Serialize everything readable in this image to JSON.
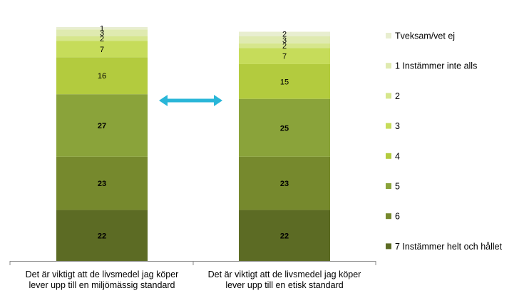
{
  "chart_data": {
    "type": "bar",
    "stacked": true,
    "categories": [
      "Det är viktigt att de livsmedel jag köper lever upp till en miljömässig standard",
      "Det är viktigt att de livsmedel jag köper lever upp till en etisk standard"
    ],
    "category_label_lines": [
      [
        "Det är viktigt att de livsmedel jag köper",
        "lever upp till en miljömässig standard"
      ],
      [
        "Det är viktigt att de livsmedel jag köper",
        "lever upp till en etisk standard"
      ]
    ],
    "series": [
      {
        "name": "7 Instämmer helt och hållet",
        "color": "#5c6b24",
        "values": [
          22,
          22
        ]
      },
      {
        "name": "6",
        "color": "#76892d",
        "values": [
          23,
          23
        ]
      },
      {
        "name": "5",
        "color": "#8aa33a",
        "values": [
          27,
          25
        ]
      },
      {
        "name": "4",
        "color": "#b3cb3e",
        "values": [
          16,
          15
        ]
      },
      {
        "name": "3",
        "color": "#c6dc5a",
        "values": [
          7,
          7
        ]
      },
      {
        "name": "2",
        "color": "#d6e68c",
        "values": [
          2,
          2
        ]
      },
      {
        "name": "1 Instämmer inte alls",
        "color": "#dfeab0",
        "values": [
          3,
          3
        ]
      },
      {
        "name": "Tveksam/vet ej",
        "color": "#e8eed0",
        "values": [
          1,
          2
        ]
      }
    ],
    "bold_label_series": [
      0,
      1,
      2
    ],
    "ylim": [
      0,
      101
    ],
    "legend_position": "right",
    "grid": false,
    "annotations": [
      {
        "type": "double-arrow",
        "color": "#29b6d8",
        "between": [
          0,
          1
        ]
      }
    ],
    "title": "",
    "xlabel": "",
    "ylabel": ""
  }
}
